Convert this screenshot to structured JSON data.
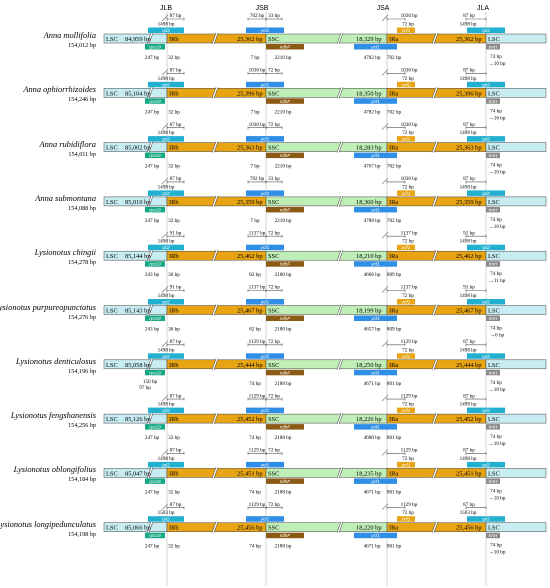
{
  "junctions": [
    "JLB",
    "JSB",
    "JSA",
    "JLA"
  ],
  "colors": {
    "lsc": "#c7ecf2",
    "ir": "#e8a413",
    "ssc": "#bfeeb7",
    "rps19": "#15a884",
    "rpl2": "#22b0d0",
    "ndhF": "#8b5a14",
    "ycf1": "#2f8ee5",
    "trnH": "#8a8a8a",
    "vline": "#bbbbbb"
  },
  "rows": [
    {
      "species": "Anna mollifolia",
      "length": "154,012 bp",
      "lsc": "84,959 bp",
      "irb": "25,362 bp",
      "ssc": "18,329 bp",
      "ira": "25,362 bp",
      "above": {
        "rpl2_l_gap": "87 bp",
        "rpl2_l": "1498 bp",
        "ycf1_l": "702 bp",
        "ssc_gap": "33 bp",
        "ira_gap": "1030 bp",
        "ycf1_r": "72 bp",
        "rpl2_r_gap": "87 bp",
        "rpl2_r": "1498 bp"
      },
      "below": {
        "rps19_l": "247 bp",
        "irb_gap": "32 bp",
        "jsb_gap": "7 bp",
        "ndhF": "2210 bp",
        "ycf1_s": "4782 bp",
        "ycf1_s2": "702 bp",
        "trnH": "74 bp",
        "trnH_gap": "10 bp"
      },
      "genes_above": [
        "rpl2",
        "ycf1",
        "ycf1",
        "rpl2"
      ],
      "genes_below": [
        "rps19",
        "ndhF",
        "ycf1",
        "trnH"
      ]
    },
    {
      "species": "Anna ophiorrhizoides",
      "length": "154,246 bp",
      "lsc": "85,104 bp",
      "irb": "25,396 bp",
      "ssc": "18,350 bp",
      "ira": "25,396 bp",
      "above": {
        "rpl2_l_gap": "87 bp",
        "rpl2_l": "1498 bp",
        "ycf1_l": "1030 bp",
        "ssc_gap": "72 bp",
        "ira_gap": "1030 bp",
        "ycf1_r": "72 bp",
        "rpl2_r_gap": "87 bp",
        "rpl2_r": "1498 bp"
      },
      "below": {
        "rps19_l": "247 bp",
        "irb_gap": "32 bp",
        "jsb_gap": "7 bp",
        "ndhF": "2210 bp",
        "ycf1_s": "4782 bp",
        "ycf1_s2": "702 bp",
        "trnH": "74 bp",
        "trnH_gap": "16 bp"
      },
      "genes_above": [
        "rpl2",
        "ycf1",
        "ycf1",
        "rpl2"
      ],
      "genes_below": [
        "rps19",
        "ndhF",
        "ycf1",
        "trnH"
      ]
    },
    {
      "species": "Anna rubidiflora",
      "length": "154,011 bp",
      "lsc": "85,002 bp",
      "irb": "25,363 bp",
      "ssc": "18,283 bp",
      "ira": "25,363 bp",
      "above": {
        "rpl2_l_gap": "87 bp",
        "rpl2_l": "1498 bp",
        "ycf1_l": "1030 bp",
        "ssc_gap": "72 bp",
        "ira_gap": "1030 bp",
        "ycf1_r": "72 bp",
        "rpl2_r_gap": "87 bp",
        "rpl2_r": "1498 bp"
      },
      "below": {
        "rps19_l": "247 bp",
        "irb_gap": "32 bp",
        "jsb_gap": "7 bp",
        "ndhF": "2210 bp",
        "ycf1_s": "4767 bp",
        "ycf1_s2": "702 bp",
        "trnH": "74 bp",
        "trnH_gap": "10 bp"
      },
      "genes_above": [
        "rpl2",
        "ycf1",
        "ycf1",
        "rpl2"
      ],
      "genes_below": [
        "rps19",
        "ndhF",
        "ycf1",
        "trnH"
      ]
    },
    {
      "species": "Anna submontana",
      "length": "154,088 bp",
      "lsc": "85,010 bp",
      "irb": "25,359 bp",
      "ssc": "18,360 bp",
      "ira": "25,359 bp",
      "above": {
        "rpl2_l_gap": "87 bp",
        "rpl2_l": "1498 bp",
        "ycf1_l": "702 bp",
        "ssc_gap": "33 bp",
        "ira_gap": "1030 bp",
        "ycf1_r": "72 bp",
        "rpl2_r_gap": "87 bp",
        "rpl2_r": "1498 bp"
      },
      "below": {
        "rps19_l": "247 bp",
        "irb_gap": "32 bp",
        "jsb_gap": "7 bp",
        "ndhF": "2210 bp",
        "ycf1_s": "4788 bp",
        "ycf1_s2": "702 bp",
        "trnH": "74 bp",
        "trnH_gap": "10 bp"
      },
      "genes_above": [
        "rpl2",
        "ycf1",
        "ycf1",
        "rpl2"
      ],
      "genes_below": [
        "rps19",
        "ndhF",
        "ycf1",
        "trnH"
      ]
    },
    {
      "species": "Lysionotus chingii",
      "length": "154,278 bp",
      "lsc": "85,144 bp",
      "irb": "25,462 bp",
      "ssc": "18,210 bp",
      "ira": "25,462 bp",
      "above": {
        "rpl2_l_gap": "91 bp",
        "rpl2_l": "1498 bp",
        "ycf1_l": "1137 bp",
        "ssc_gap": "72 bp",
        "ira_gap": "1137 bp",
        "ycf1_r": "72 bp",
        "rpl2_r_gap": "91 bp",
        "rpl2_r": "1498 bp"
      },
      "below": {
        "rps19_l": "243 bp",
        "irb_gap": "36 bp",
        "jsb_gap": "82 bp",
        "ndhF": "2180 bp",
        "ycf1_s": "4666 bp",
        "ycf1_s2": "809 bp",
        "trnH": "74 bp",
        "trnH_gap": "11 bp"
      },
      "genes_above": [
        "rpl2",
        "ycf1",
        "ycf1",
        "rpl2"
      ],
      "genes_below": [
        "rps19",
        "ndhF",
        "ycf1",
        "trnH"
      ]
    },
    {
      "species": "Lysionotus purpureopunctatus",
      "length": "154,276 bp",
      "lsc": "85,143 bp",
      "irb": "25,467 bp",
      "ssc": "18,199 bp",
      "ira": "25,467 bp",
      "above": {
        "rpl2_l_gap": "91 bp",
        "rpl2_l": "1498 bp",
        "ycf1_l": "1137 bp",
        "ssc_gap": "72 bp",
        "ira_gap": "1137 bp",
        "ycf1_r": "72 bp",
        "rpl2_r_gap": "91 bp",
        "rpl2_r": "1498 bp"
      },
      "below": {
        "rps19_l": "243 bp",
        "irb_gap": "36 bp",
        "jsb_gap": "82 bp",
        "ndhF": "2180 bp",
        "ycf1_s": "4657 bp",
        "ycf1_s2": "809 bp",
        "trnH": "74 bp",
        "trnH_gap": "6 bp"
      },
      "genes_above": [
        "rpl2",
        "ycf1",
        "ycf1",
        "rpl2"
      ],
      "genes_below": [
        "rps19",
        "ndhF",
        "ycf1",
        "trnH"
      ]
    },
    {
      "species": "Lysionotus denticulosus",
      "length": "154,196 bp",
      "lsc": "85,058 bp",
      "irb": "25,444 bp",
      "ssc": "18,250 bp",
      "ira": "25,444 bp",
      "above": {
        "rpl2_l_gap": "87 bp",
        "rpl2_l": "1498 bp",
        "ycf1_l": "1129 bp",
        "ssc_gap": "72 bp",
        "ira_gap": "1129 bp",
        "ycf1_r": "72 bp",
        "rpl2_r_gap": "87 bp",
        "rpl2_r": "1498 bp"
      },
      "below": {
        "rps19_l": "150 bp",
        "rps19_l2": "97 bp",
        "irb_gap": "",
        "jsb_gap": "74 bp",
        "ndhF": "2188 bp",
        "ycf1_s": "4671 bp",
        "ycf1_s2": "801 bp",
        "trnH": "74 bp",
        "trnH_gap": "10 bp"
      },
      "genes_above": [
        "rpl2",
        "ycf1",
        "ycf1",
        "rpl2"
      ],
      "genes_below": [
        "rps19",
        "ndhF",
        "ycf1",
        "trnH"
      ]
    },
    {
      "species": "Lysionotus fengshanensis",
      "length": "154,256 bp",
      "lsc": "85,126 bp",
      "irb": "25,452 bp",
      "ssc": "18,226 bp",
      "ira": "25,452 bp",
      "above": {
        "rpl2_l_gap": "87 bp",
        "rpl2_l": "1498 bp",
        "ycf1_l": "1129 bp",
        "ssc_gap": "72 bp",
        "ira_gap": "1129 bp",
        "ycf1_r": "72 bp",
        "rpl2_r_gap": "87 bp",
        "rpl2_r": "1498 bp"
      },
      "below": {
        "rps19_l": "247 bp",
        "irb_gap": "32 bp",
        "jsb_gap": "74 bp",
        "ndhF": "2188 bp",
        "ycf1_s": "4680 bp",
        "ycf1_s2": "801 bp",
        "trnH": "74 bp",
        "trnH_gap": "10 bp"
      },
      "genes_above": [
        "rpl2",
        "ycf1",
        "ycf1",
        "rpl2"
      ],
      "genes_below": [
        "rps19",
        "ndhF",
        "ycf1",
        "trnH"
      ]
    },
    {
      "species": "Lysionotus oblongifolius",
      "length": "154,184 bp",
      "lsc": "85,047 bp",
      "irb": "25,451 bp",
      "ssc": "18,235 bp",
      "ira": "25,451 bp",
      "above": {
        "rpl2_l_gap": "87 bp",
        "rpl2_l": "1498 bp",
        "ycf1_l": "1129 bp",
        "ssc_gap": "72 bp",
        "ira_gap": "1129 bp",
        "ycf1_r": "72 bp",
        "rpl2_r_gap": "87 bp",
        "rpl2_r": "1498 bp"
      },
      "below": {
        "rps19_l": "247 bp",
        "irb_gap": "32 bp",
        "jsb_gap": "74 bp",
        "ndhF": "2188 bp",
        "ycf1_s": "4671 bp",
        "ycf1_s2": "801 bp",
        "trnH": "74 bp",
        "trnH_gap": "10 bp"
      },
      "genes_above": [
        "rpl2",
        "ycf1",
        "ycf1",
        "rpl2"
      ],
      "genes_below": [
        "rps19",
        "ndhF",
        "ycf1",
        "trnH"
      ]
    },
    {
      "species": "Lysionotus longipedunculatus",
      "length": "154,198 bp",
      "lsc": "85,066 bp",
      "irb": "25,456 bp",
      "ssc": "18,220 bp",
      "ira": "25,456 bp",
      "above": {
        "rpl2_l_gap": "87 bp",
        "rpl2_l": "1503 bp",
        "ycf1_l": "1129 bp",
        "ssc_gap": "72 bp",
        "ira_gap": "1129 bp",
        "ycf1_r": "72 bp",
        "rpl2_r_gap": "87 bp",
        "rpl2_r": "1503 bp"
      },
      "below": {
        "rps19_l": "247 bp",
        "irb_gap": "32 bp",
        "jsb_gap": "74 bp",
        "ndhF": "2188 bp",
        "ycf1_s": "4671 bp",
        "ycf1_s2": "801 bp",
        "trnH": "74 bp",
        "trnH_gap": "10 bp"
      },
      "genes_above": [
        "rpl2",
        "ycf1",
        "ycf1",
        "rpl2"
      ],
      "genes_below": [
        "rps19",
        "ndhF",
        "ycf1",
        "trnH"
      ]
    }
  ]
}
